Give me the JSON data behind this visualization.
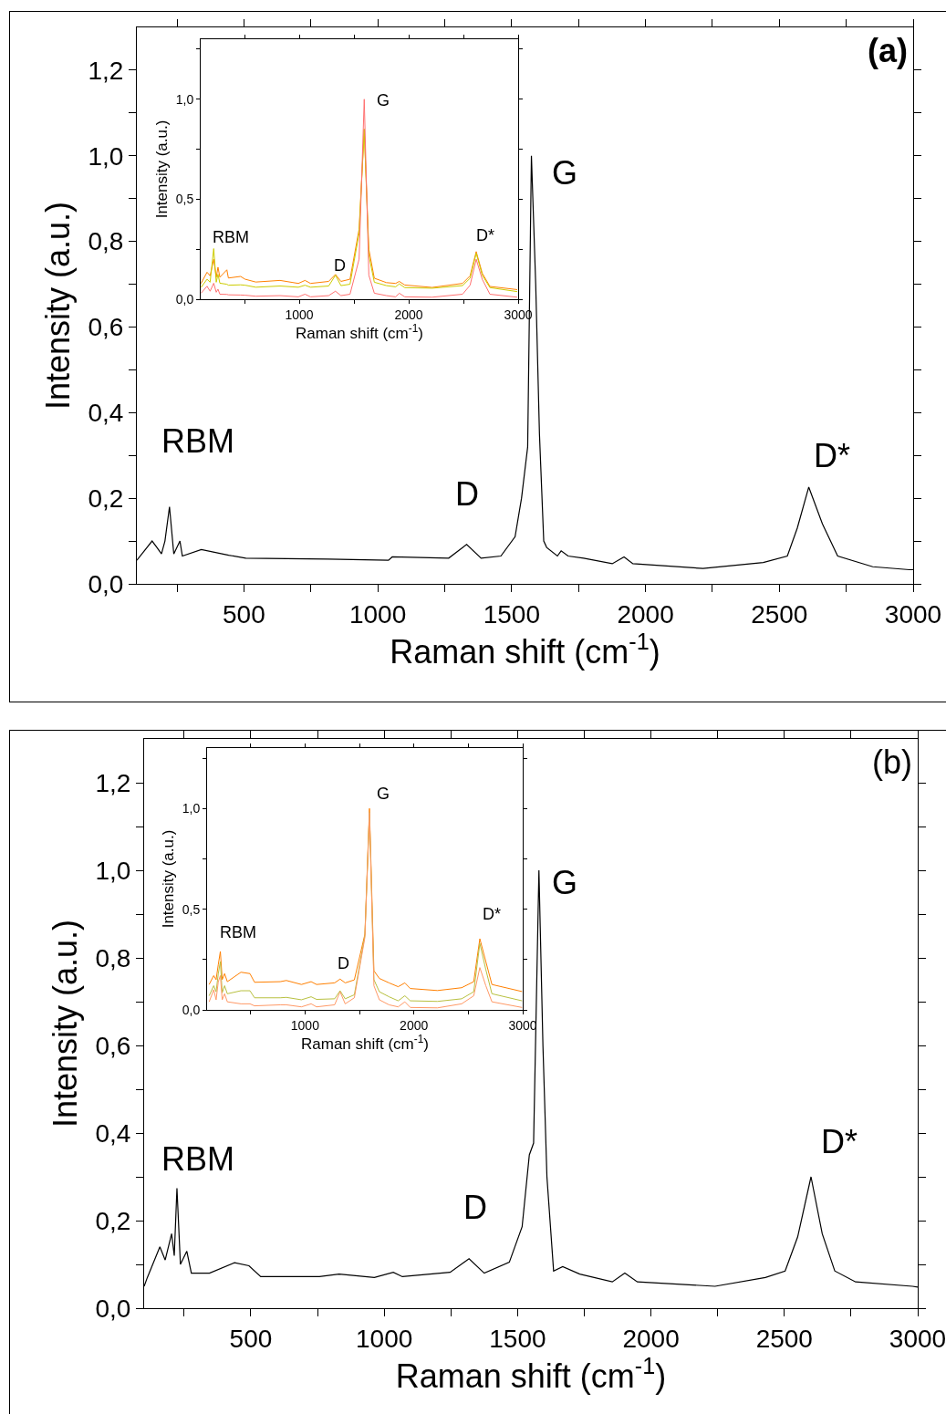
{
  "chart_data": [
    {
      "type": "line",
      "title": "(a)",
      "xlabel": "Raman shift (cm$^{-1}$)",
      "ylabel": "Intensity (a.u.)",
      "xlim": [
        100,
        3000
      ],
      "ylim": [
        0,
        1.3
      ],
      "xticks": [
        {
          "value": 250,
          "label": null
        },
        500,
        {
          "value": 750,
          "label": null
        },
        1000,
        {
          "value": 1250,
          "label": null
        },
        1500,
        {
          "value": 1750,
          "label": null
        },
        2000,
        {
          "value": 2250,
          "label": null
        },
        2500,
        {
          "value": 2750,
          "label": null
        },
        3000
      ],
      "yticks": [
        {
          "value": 0,
          "label": "0,0"
        },
        {
          "value": 0.1,
          "label": null
        },
        {
          "value": 0.2,
          "label": "0,2"
        },
        {
          "value": 0.3,
          "label": null
        },
        {
          "value": 0.4,
          "label": "0,4"
        },
        {
          "value": 0.5,
          "label": null
        },
        {
          "value": 0.6,
          "label": "0,6"
        },
        {
          "value": 0.7,
          "label": null
        },
        {
          "value": 0.8,
          "label": "0,8"
        },
        {
          "value": 0.9,
          "label": null
        },
        {
          "value": 1.0,
          "label": "1,0"
        },
        {
          "value": 1.1,
          "label": null
        },
        {
          "value": 1.2,
          "label": "1,2"
        }
      ],
      "annotations": [
        "RBM",
        "D",
        "G",
        "D*"
      ],
      "series": [
        {
          "color": "#000000",
          "x": [
            100,
            157,
            175,
            192,
            205,
            222,
            238,
            261,
            270,
            341,
            443,
            507,
            815,
            1040,
            1054,
            1265,
            1332,
            1386,
            1460,
            1513,
            1537,
            1560,
            1574,
            1590,
            1604,
            1620,
            1631,
            1671,
            1685,
            1711,
            1769,
            1876,
            1920,
            1953,
            2215,
            2440,
            2530,
            2567,
            2610,
            2661,
            2718,
            2849,
            2986,
            3000
          ],
          "values": [
            0.055,
            0.1,
            0.085,
            0.07,
            0.1,
            0.18,
            0.07,
            0.1,
            0.065,
            0.08,
            0.067,
            0.06,
            0.058,
            0.055,
            0.063,
            0.06,
            0.092,
            0.06,
            0.065,
            0.11,
            0.2,
            0.32,
            1.0,
            0.7,
            0.35,
            0.1,
            0.085,
            0.065,
            0.077,
            0.065,
            0.06,
            0.047,
            0.063,
            0.047,
            0.036,
            0.05,
            0.065,
            0.13,
            0.226,
            0.14,
            0.065,
            0.04,
            0.033,
            0.033
          ]
        }
      ]
    },
    {
      "type": "line",
      "xlabel": "Raman shift (cm$^{-1}$)",
      "ylabel": "Intensity (a.u.)",
      "xlim": [
        100,
        3000
      ],
      "ylim": [
        0,
        1.3
      ],
      "xticks": [
        {
          "value": 500,
          "label": null
        },
        1000,
        {
          "value": 1500,
          "label": null
        },
        2000,
        {
          "value": 2500,
          "label": null
        },
        3000
      ],
      "yticks": [
        {
          "value": 0,
          "label": "0,0"
        },
        {
          "value": 0.25,
          "label": null
        },
        {
          "value": 0.5,
          "label": "0,5"
        },
        {
          "value": 0.75,
          "label": null
        },
        {
          "value": 1.0,
          "label": "1,0"
        },
        {
          "value": 1.25,
          "label": null
        }
      ],
      "annotations": [
        "RBM",
        "D",
        "G",
        "D*"
      ],
      "x": [
        103,
        158,
        186,
        219,
        242,
        258,
        275,
        339,
        353,
        464,
        506,
        603,
        825,
        992,
        1053,
        1103,
        1269,
        1331,
        1381,
        1464,
        1547,
        1594,
        1636,
        1686,
        1797,
        1881,
        1914,
        1964,
        2214,
        2492,
        2561,
        2617,
        2672,
        2742,
        2992
      ],
      "series": [
        {
          "color": "#ff8000",
          "values": [
            0.079,
            0.135,
            0.117,
            0.2,
            0.11,
            0.16,
            0.11,
            0.147,
            0.106,
            0.114,
            0.1,
            0.086,
            0.094,
            0.079,
            0.094,
            0.079,
            0.089,
            0.124,
            0.089,
            0.1,
            0.35,
            0.85,
            0.25,
            0.105,
            0.083,
            0.079,
            0.089,
            0.071,
            0.059,
            0.079,
            0.117,
            0.238,
            0.13,
            0.064,
            0.048
          ]
        },
        {
          "color": "#cccc00",
          "values": [
            0.059,
            0.1,
            0.085,
            0.253,
            0.085,
            0.125,
            0.08,
            0.075,
            0.07,
            0.072,
            0.07,
            0.06,
            0.066,
            0.06,
            0.07,
            0.06,
            0.066,
            0.12,
            0.068,
            0.075,
            0.33,
            0.85,
            0.22,
            0.085,
            0.068,
            0.062,
            0.077,
            0.058,
            0.055,
            0.068,
            0.105,
            0.23,
            0.12,
            0.058,
            0.038
          ]
        },
        {
          "color": "#ff7070",
          "values": [
            0.03,
            0.065,
            0.04,
            0.08,
            0.035,
            0.05,
            0.025,
            0.024,
            0.022,
            0.021,
            0.02,
            0.015,
            0.018,
            0.012,
            0.025,
            0.012,
            0.018,
            0.04,
            0.018,
            0.025,
            0.2,
            1.0,
            0.12,
            0.03,
            0.018,
            0.012,
            0.03,
            0.012,
            0.01,
            0.025,
            0.07,
            0.2,
            0.1,
            0.025,
            0.01
          ]
        }
      ]
    },
    {
      "type": "line",
      "title": "(b)",
      "xlabel": "Raman shift (cm$^{-1}$)",
      "ylabel": "Intensity (a.u.)",
      "xlim": [
        100,
        3000
      ],
      "ylim": [
        0,
        1.3
      ],
      "xticks": [
        {
          "value": 250,
          "label": null
        },
        500,
        {
          "value": 750,
          "label": null
        },
        1000,
        {
          "value": 1250,
          "label": null
        },
        1500,
        {
          "value": 1750,
          "label": null
        },
        2000,
        {
          "value": 2250,
          "label": null
        },
        2500,
        {
          "value": 2750,
          "label": null
        },
        3000
      ],
      "yticks": [
        {
          "value": 0,
          "label": "0,0"
        },
        {
          "value": 0.1,
          "label": null
        },
        {
          "value": 0.2,
          "label": "0,2"
        },
        {
          "value": 0.3,
          "label": null
        },
        {
          "value": 0.4,
          "label": "0,4"
        },
        {
          "value": 0.5,
          "label": null
        },
        {
          "value": 0.6,
          "label": "0,6"
        },
        {
          "value": 0.7,
          "label": null
        },
        {
          "value": 0.8,
          "label": "0,8"
        },
        {
          "value": 0.9,
          "label": null
        },
        {
          "value": 1.0,
          "label": "1,0"
        },
        {
          "value": 1.1,
          "label": null
        },
        {
          "value": 1.2,
          "label": "1,2"
        }
      ],
      "annotations": [
        "RBM",
        "D",
        "G",
        "D*"
      ],
      "series": [
        {
          "color": "#000000",
          "x": [
            100,
            112,
            159,
            179,
            203,
            213,
            223,
            236,
            260,
            277,
            345,
            439,
            493,
            537,
            757,
            831,
            963,
            1034,
            1068,
            1247,
            1318,
            1375,
            1469,
            1517,
            1544,
            1560,
            1580,
            1595,
            1610,
            1635,
            1669,
            1733,
            1855,
            1902,
            1949,
            2240,
            2429,
            2503,
            2550,
            2600,
            2642,
            2689,
            2767,
            2980,
            3000
          ],
          "values": [
            0.05,
            0.07,
            0.14,
            0.11,
            0.17,
            0.12,
            0.274,
            0.1,
            0.13,
            0.08,
            0.08,
            0.104,
            0.097,
            0.072,
            0.072,
            0.078,
            0.07,
            0.082,
            0.072,
            0.082,
            0.113,
            0.08,
            0.105,
            0.186,
            0.35,
            0.377,
            1.0,
            0.6,
            0.3,
            0.085,
            0.095,
            0.078,
            0.06,
            0.08,
            0.06,
            0.05,
            0.07,
            0.085,
            0.163,
            0.3,
            0.17,
            0.085,
            0.06,
            0.05,
            0.048
          ]
        }
      ]
    },
    {
      "type": "line",
      "xlabel": "Raman shift (cm$^{-1}$)",
      "ylabel": "Intensity (a.u.)",
      "xlim": [
        100,
        3000
      ],
      "ylim": [
        0,
        1.3
      ],
      "xticks": [
        {
          "value": 500,
          "label": null
        },
        1000,
        {
          "value": 1500,
          "label": null
        },
        2000,
        {
          "value": 2500,
          "label": null
        },
        3000
      ],
      "yticks": [
        {
          "value": 0,
          "label": "0,0"
        },
        {
          "value": 0.25,
          "label": null
        },
        {
          "value": 0.5,
          "label": "0,5"
        },
        {
          "value": 0.75,
          "label": null
        },
        {
          "value": 1.0,
          "label": "1,0"
        },
        {
          "value": 1.25,
          "label": null
        }
      ],
      "annotations": [
        "RBM",
        "D",
        "G",
        "D*"
      ],
      "x": [
        119,
        161,
        183,
        203,
        222,
        239,
        261,
        286,
        411,
        494,
        536,
        772,
        828,
        967,
        1056,
        1106,
        1272,
        1322,
        1369,
        1453,
        1550,
        1592,
        1633,
        1683,
        1772,
        1856,
        1917,
        1967,
        2217,
        2439,
        2550,
        2606,
        2661,
        2717,
        2994
      ],
      "series": [
        {
          "color": "#ff7f00",
          "values": [
            0.126,
            0.17,
            0.15,
            0.225,
            0.29,
            0.15,
            0.18,
            0.14,
            0.187,
            0.18,
            0.137,
            0.14,
            0.146,
            0.126,
            0.14,
            0.126,
            0.134,
            0.153,
            0.134,
            0.149,
            0.376,
            1.0,
            0.194,
            0.156,
            0.134,
            0.115,
            0.134,
            0.106,
            0.096,
            0.11,
            0.14,
            0.353,
            0.24,
            0.126,
            0.091
          ]
        },
        {
          "color": "#b8c040",
          "values": [
            0.07,
            0.12,
            0.09,
            0.18,
            0.24,
            0.085,
            0.12,
            0.08,
            0.095,
            0.095,
            0.06,
            0.06,
            0.062,
            0.05,
            0.065,
            0.052,
            0.055,
            0.095,
            0.055,
            0.075,
            0.37,
            0.98,
            0.15,
            0.09,
            0.065,
            0.045,
            0.07,
            0.045,
            0.042,
            0.055,
            0.09,
            0.33,
            0.2,
            0.08,
            0.045
          ]
        },
        {
          "color": "#ff9966",
          "values": [
            0.04,
            0.1,
            0.05,
            0.14,
            0.17,
            0.05,
            0.08,
            0.04,
            0.03,
            0.03,
            0.02,
            0.025,
            0.025,
            0.015,
            0.03,
            0.015,
            0.025,
            0.09,
            0.03,
            0.06,
            0.36,
            0.98,
            0.12,
            0.05,
            0.025,
            0.015,
            0.04,
            0.012,
            0.01,
            0.03,
            0.07,
            0.21,
            0.12,
            0.04,
            0.012
          ]
        }
      ]
    }
  ]
}
